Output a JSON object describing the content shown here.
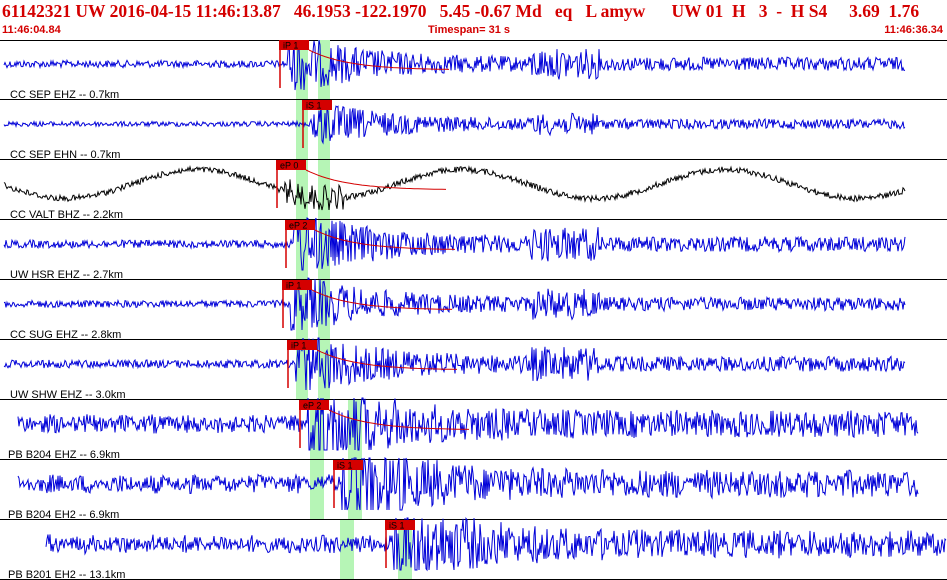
{
  "header": {
    "title": "61142321 UW 2016-04-15 11:46:13.87   46.1953 -122.1970   5.45 -0.67 Md   eq   L amyw      UW 01  H   3  -  H S4     3.69  1.76",
    "start_time": "11:46:04.84",
    "timespan": "Timespan=  31 s",
    "end_time": "11:46:36.34"
  },
  "colors": {
    "trace": "#0000d8",
    "trace_alt": "#000000",
    "pick": "#d40000",
    "window": "#b6f5b6",
    "header": "#d40000"
  },
  "traces": [
    {
      "label": "CC SEP EHZ -- 0.7km",
      "color_key": "trace",
      "picks": [
        "iP 1"
      ],
      "style": "highfreq"
    },
    {
      "label": "CC SEP EHN -- 0.7km",
      "color_key": "trace",
      "picks": [
        "iS 1"
      ],
      "style": "quiet"
    },
    {
      "label": "CC VALT BHZ -- 2.2km",
      "color_key": "trace_alt",
      "picks": [
        "eP 0"
      ],
      "style": "wave"
    },
    {
      "label": "UW HSR EHZ -- 2.7km",
      "color_key": "trace",
      "picks": [
        "eP 2"
      ],
      "style": "highfreq"
    },
    {
      "label": "CC SUG EHZ -- 2.8km",
      "color_key": "trace",
      "picks": [
        "iP 1"
      ],
      "style": "highfreq"
    },
    {
      "label": "UW SHW EHZ -- 3.0km",
      "color_key": "trace",
      "picks": [
        "iP 1"
      ],
      "style": "highfreq"
    },
    {
      "label": "PB B204 EHZ -- 6.9km",
      "color_key": "trace",
      "picks": [
        "eP 2"
      ],
      "style": "noisy"
    },
    {
      "label": "PB B204 EH2 -- 6.9km",
      "color_key": "trace",
      "picks": [
        "iS 1"
      ],
      "style": "noisy"
    },
    {
      "label": "PB B201 EH2 -- 13.1km",
      "color_key": "trace",
      "picks": [
        "iS 1"
      ],
      "style": "noisy"
    }
  ]
}
